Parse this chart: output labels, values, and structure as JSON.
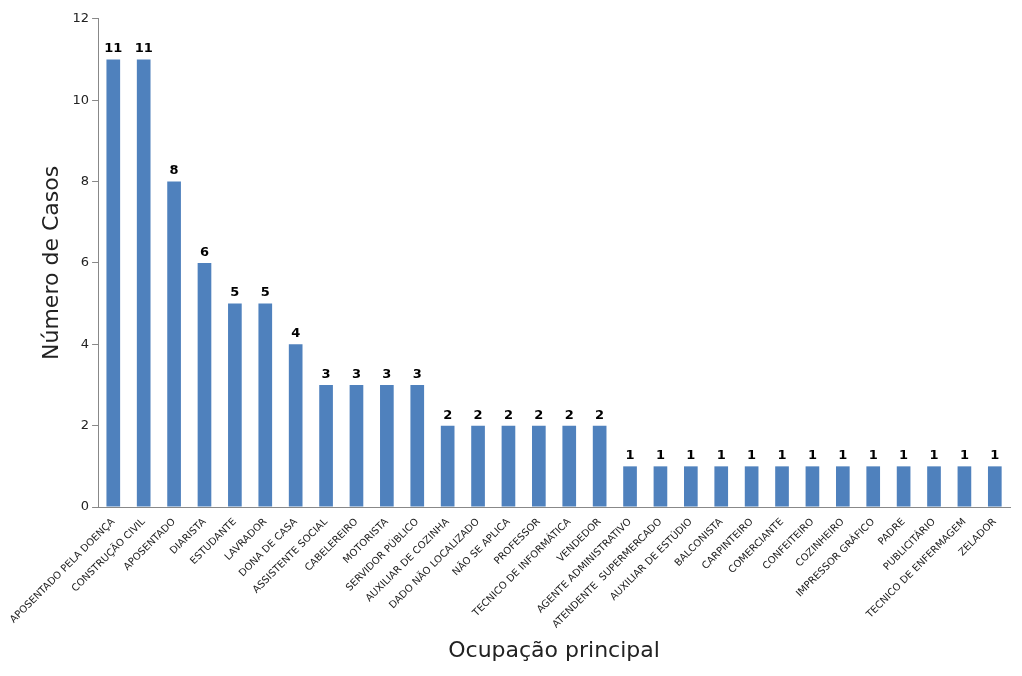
{
  "chart_data": {
    "type": "bar",
    "xlabel": "Ocupação principal",
    "ylabel": "Número de Casos",
    "categories": [
      "APOSENTADO PELA DOENÇA",
      "CONSTRUÇÃO CIVIL",
      "APOSENTADO",
      "DIARISTA",
      "ESTUDANTE",
      "LAVRADOR",
      "DONA DE CASA",
      "ASSISTENTE SOCIAL",
      "CABELEREIRO",
      "MOTORISTA",
      "SERVIDOR PÚBLICO",
      "AUXILIAR DE COZINHA",
      "DADO NÃO LOCALIZADO",
      "NÃO SE APLICA",
      "PROFESSOR",
      "TECNICO DE INFORMÁTICA",
      "VENDEDOR",
      "AGENTE ADMINISTRATIVO",
      "ATENDENTE  SUPERMERCADO",
      "AUXILIAR DE ESTÚDIO",
      "BALCONISTA",
      "CARPINTEIRO",
      "COMERCIANTE",
      "CONFEITEIRO",
      "COZINHEIRO",
      "IMPRESSOR GRÁFICO",
      "PADRE",
      "PUBLICITÁRIO",
      "TECNICO DE ENFERMAGEM",
      "ZELADOR"
    ],
    "values": [
      11,
      11,
      8,
      6,
      5,
      5,
      4,
      3,
      3,
      3,
      3,
      2,
      2,
      2,
      2,
      2,
      2,
      1,
      1,
      1,
      1,
      1,
      1,
      1,
      1,
      1,
      1,
      1,
      1,
      1
    ],
    "color": "#4f81bd",
    "ylim": [
      0,
      12
    ],
    "yticks": [
      0,
      2,
      4,
      6,
      8,
      10,
      12
    ],
    "grid": false,
    "legend": false,
    "data_labels": true
  }
}
